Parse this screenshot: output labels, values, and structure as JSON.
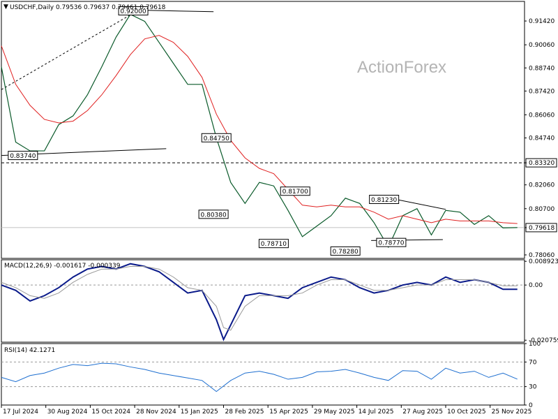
{
  "chart_data": {
    "type": "line",
    "symbol": "USDCHF",
    "timeframe": "Daily",
    "header": {
      "text": "USDCHF,Daily",
      "open": "0.79536",
      "high": "0.79637",
      "low": "0.79461",
      "close": "0.79618"
    },
    "watermark": "ActionForex",
    "price_panel": {
      "y_ticks": [
        "0.91420",
        "0.90060",
        "0.88740",
        "0.87420",
        "0.86060",
        "0.84740",
        "0.83320",
        "0.82060",
        "0.80700",
        "0.79618",
        "0.78060"
      ],
      "y_tick_values": [
        0.9142,
        0.9006,
        0.8874,
        0.8742,
        0.8606,
        0.8474,
        0.8332,
        0.8206,
        0.807,
        0.79618,
        0.7806
      ],
      "ylim": [
        0.7786,
        0.9254
      ],
      "horizontal_level": "0.83320",
      "horizontal_level_value": 0.8332,
      "current_price_label": "0.79618",
      "current_price": 0.79618,
      "series": [
        {
          "name": "USDCHF",
          "x_index": [
            0,
            10,
            20,
            30,
            40,
            50,
            60,
            70,
            80,
            90,
            100,
            110,
            120,
            130,
            140,
            150,
            160,
            170,
            180,
            190,
            200,
            210,
            220,
            230,
            240,
            250,
            260,
            270,
            280,
            290,
            300,
            310,
            320,
            330,
            340,
            350,
            360
          ],
          "values": [
            0.888,
            0.845,
            0.84,
            0.84,
            0.855,
            0.86,
            0.872,
            0.888,
            0.905,
            0.918,
            0.914,
            0.902,
            0.89,
            0.878,
            0.878,
            0.8475,
            0.822,
            0.81,
            0.822,
            0.82,
            0.806,
            0.791,
            0.797,
            0.803,
            0.813,
            0.81,
            0.799,
            0.785,
            0.803,
            0.807,
            0.792,
            0.806,
            0.805,
            0.798,
            0.803,
            0.796,
            0.7962
          ]
        },
        {
          "name": "",
          "x_index": [
            0,
            10,
            20,
            30,
            40,
            50,
            60,
            70,
            80,
            90,
            100,
            110,
            120,
            130,
            140,
            150,
            160,
            170,
            180,
            190,
            200,
            210,
            220,
            230,
            240,
            250,
            260,
            270,
            280,
            290,
            300,
            310,
            320,
            330,
            340,
            350,
            360
          ],
          "values": [
            0.9,
            0.878,
            0.866,
            0.858,
            0.856,
            0.857,
            0.863,
            0.872,
            0.883,
            0.895,
            0.904,
            0.906,
            0.902,
            0.894,
            0.882,
            0.861,
            0.846,
            0.836,
            0.83,
            0.827,
            0.818,
            0.809,
            0.808,
            0.809,
            0.808,
            0.808,
            0.805,
            0.801,
            0.803,
            0.801,
            0.799,
            0.801,
            0.8,
            0.8,
            0.8,
            0.799,
            0.7985
          ]
        }
      ],
      "annotations": [
        {
          "text": "0.92000",
          "x_index": 92,
          "value": 0.92
        },
        {
          "text": "0.83740",
          "x_index": 15,
          "value": 0.8374
        },
        {
          "text": "0.84750",
          "x_index": 150,
          "value": 0.8475
        },
        {
          "text": "0.80380",
          "x_index": 148,
          "value": 0.8038
        },
        {
          "text": "0.81700",
          "x_index": 205,
          "value": 0.817
        },
        {
          "text": "0.78710",
          "x_index": 190,
          "value": 0.7871
        },
        {
          "text": "0.78280",
          "x_index": 240,
          "value": 0.7828
        },
        {
          "text": "0.81230",
          "x_index": 267,
          "value": 0.8123
        },
        {
          "text": "0.78770",
          "x_index": 272,
          "value": 0.7877
        }
      ],
      "trendlines": [
        {
          "style": "solid",
          "points": [
            [
              0,
              0.8374
            ],
            [
              115,
              0.8413
            ]
          ]
        },
        {
          "style": "solid",
          "points": [
            [
              90,
              0.9205
            ],
            [
              148,
              0.9195
            ]
          ]
        },
        {
          "style": "dashed",
          "points": [
            [
              0,
              0.875
            ],
            [
              98,
              0.9215
            ]
          ]
        },
        {
          "style": "solid",
          "points": [
            [
              268,
              0.8135
            ],
            [
              310,
              0.8066
            ]
          ]
        },
        {
          "style": "solid",
          "points": [
            [
              258,
              0.7888
            ],
            [
              308,
              0.7893
            ]
          ]
        }
      ]
    },
    "macd_panel": {
      "label": "MACD(12,26,9) -0.001617 -0.000339",
      "y_ticks": [
        "0.008923",
        "0.00",
        "-0.020759"
      ],
      "y_tick_values": [
        0.008923,
        0.0,
        -0.020759
      ],
      "ylim": [
        -0.0215,
        0.0095
      ],
      "series": [
        {
          "name": "",
          "x_index": [
            0,
            10,
            20,
            30,
            40,
            50,
            60,
            70,
            80,
            90,
            100,
            110,
            120,
            130,
            140,
            150,
            155,
            160,
            170,
            180,
            190,
            200,
            210,
            220,
            230,
            240,
            250,
            260,
            270,
            280,
            290,
            300,
            310,
            320,
            330,
            340,
            350,
            360
          ],
          "values": [
            0.0,
            -0.002,
            -0.006,
            -0.004,
            -0.001,
            0.003,
            0.006,
            0.007,
            0.006,
            0.008,
            0.007,
            0.005,
            0.001,
            -0.003,
            -0.002,
            -0.013,
            -0.0205,
            -0.015,
            -0.004,
            -0.003,
            -0.004,
            -0.005,
            -0.001,
            0.001,
            0.003,
            0.002,
            -0.001,
            -0.003,
            -0.002,
            0.0,
            0.001,
            0.0,
            0.003,
            0.001,
            0.002,
            0.001,
            -0.0016,
            -0.0016
          ]
        },
        {
          "name": "",
          "x_index": [
            0,
            10,
            20,
            30,
            40,
            50,
            60,
            70,
            80,
            90,
            100,
            110,
            120,
            130,
            140,
            150,
            155,
            160,
            170,
            180,
            190,
            200,
            210,
            220,
            230,
            240,
            250,
            260,
            270,
            280,
            290,
            300,
            310,
            320,
            330,
            340,
            350,
            360
          ],
          "values": [
            0.001,
            -0.001,
            -0.004,
            -0.005,
            -0.003,
            0.001,
            0.004,
            0.006,
            0.006,
            0.007,
            0.007,
            0.006,
            0.003,
            -0.001,
            -0.002,
            -0.008,
            -0.016,
            -0.017,
            -0.008,
            -0.004,
            -0.004,
            -0.004,
            -0.003,
            0.0,
            0.002,
            0.002,
            0.0,
            -0.002,
            -0.002,
            -0.001,
            0.0,
            0.0,
            0.002,
            0.002,
            0.002,
            0.001,
            -0.0003,
            -0.0003
          ]
        }
      ]
    },
    "rsi_panel": {
      "label": "RSI(14) 42.1271",
      "y_ticks": [
        "100",
        "70",
        "30",
        "0"
      ],
      "y_tick_values": [
        100,
        70,
        30,
        0
      ],
      "ylim": [
        0,
        100
      ],
      "levels": [
        70,
        30
      ],
      "series": [
        {
          "name": "",
          "x_index": [
            0,
            10,
            20,
            30,
            40,
            50,
            60,
            70,
            80,
            90,
            100,
            110,
            120,
            130,
            140,
            150,
            160,
            170,
            180,
            190,
            200,
            210,
            220,
            230,
            240,
            250,
            260,
            270,
            280,
            290,
            300,
            310,
            320,
            330,
            340,
            350,
            360
          ],
          "values": [
            45,
            38,
            48,
            52,
            60,
            66,
            64,
            68,
            67,
            62,
            58,
            52,
            48,
            44,
            40,
            22,
            40,
            52,
            55,
            50,
            42,
            45,
            54,
            55,
            58,
            52,
            45,
            40,
            56,
            55,
            42,
            60,
            52,
            55,
            45,
            52,
            42.1
          ]
        }
      ]
    },
    "x_ticks": [
      "17 Jul 2024",
      "30 Aug 2024",
      "15 Oct 2024",
      "28 Nov 2024",
      "15 Jan 2025",
      "28 Feb 2025",
      "15 Apr 2025",
      "29 May 2025",
      "14 Jul 2025",
      "27 Aug 2025",
      "10 Oct 2025",
      "25 Nov 2025"
    ],
    "x_tick_index": [
      0,
      31,
      62,
      93,
      124,
      155,
      186,
      217,
      248,
      279,
      310,
      341
    ],
    "xlim": [
      0,
      365
    ]
  }
}
